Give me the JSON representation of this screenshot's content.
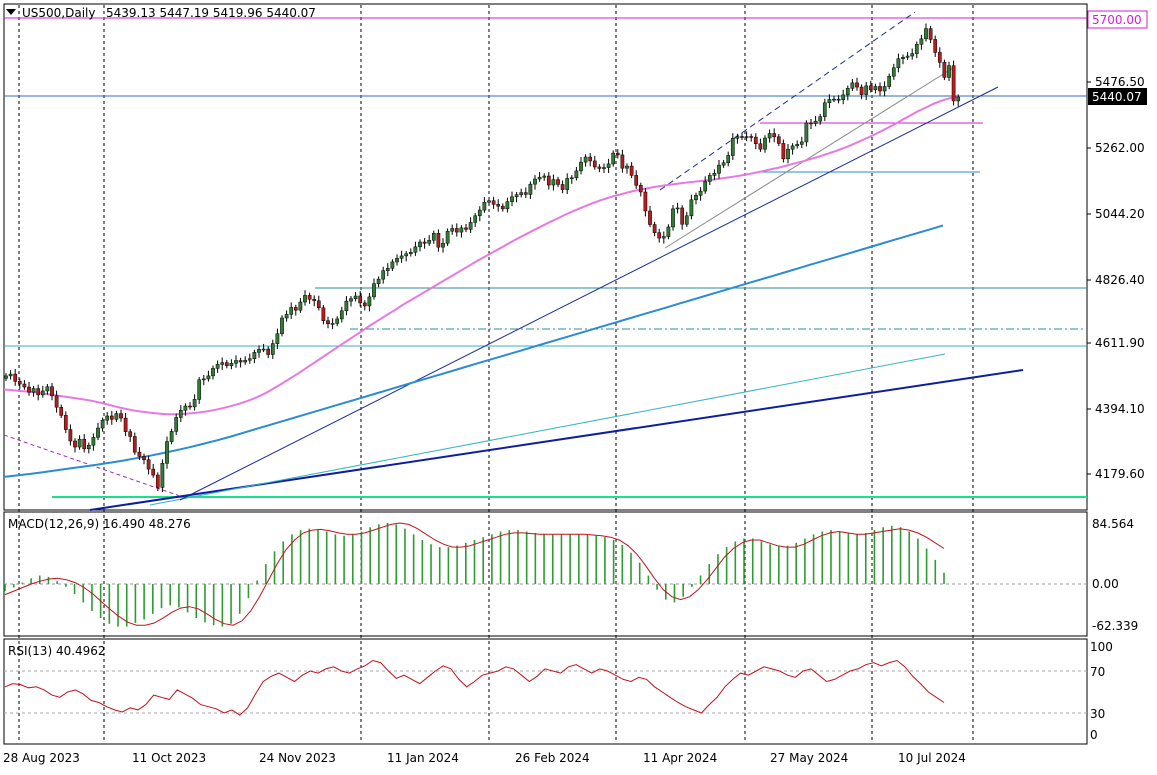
{
  "header": {
    "symbol_timeframe": "US500,Daily",
    "ohlc": "5439.13 5447.19 5419.96 5440.07"
  },
  "price_labels": {
    "level": "5700.00",
    "current": "5440.07"
  },
  "colors": {
    "background": "#ffffff",
    "bull_candle": "#2e7d32",
    "bear_candle": "#b71c1c",
    "ma_fast": "#e879e0",
    "ma_slow": "#2a8bd6",
    "macd_hist": "#2e9b33",
    "macd_signal": "#c0141c",
    "rsi_line": "#c0141c",
    "level_line": "#d41fd2",
    "trend_line_dark": "#0b1fa0",
    "horizontal_teal": "#2b8b9b",
    "support_green": "#19e08a"
  },
  "chart_data": [
    {
      "type": "candlestick",
      "title": "US500,Daily",
      "x_tick_labels": [
        "28 Aug 2023",
        "11 Oct 2023",
        "24 Nov 2023",
        "11 Jan 2024",
        "26 Feb 2024",
        "11 Apr 2024",
        "27 May 2024",
        "10 Jul 2024"
      ],
      "y_tick_labels": [
        "5476.50",
        "5262.00",
        "5044.20",
        "4826.40",
        "4611.90",
        "4394.10",
        "4179.60"
      ],
      "ylim": [
        4110,
        5760
      ],
      "grid": "vertical dashed",
      "last_price": 5440.07,
      "level_line_price": 5700.0,
      "close_series": [
        4515,
        4521,
        4497,
        4488,
        4478,
        4461,
        4473,
        4452,
        4465,
        4479,
        4449,
        4411,
        4384,
        4337,
        4299,
        4279,
        4305,
        4273,
        4285,
        4311,
        4342,
        4368,
        4382,
        4371,
        4390,
        4375,
        4330,
        4314,
        4262,
        4248,
        4237,
        4206,
        4186,
        4145,
        4225,
        4297,
        4331,
        4377,
        4401,
        4415,
        4412,
        4437,
        4502,
        4505,
        4515,
        4540,
        4553,
        4559,
        4549,
        4557,
        4566,
        4561,
        4567,
        4572,
        4593,
        4603,
        4604,
        4586,
        4622,
        4655,
        4707,
        4719,
        4742,
        4733,
        4760,
        4782,
        4769,
        4764,
        4741,
        4698,
        4688,
        4689,
        4704,
        4731,
        4763,
        4771,
        4780,
        4757,
        4747,
        4777,
        4821,
        4836,
        4864,
        4872,
        4893,
        4905,
        4913,
        4920,
        4925,
        4943,
        4959,
        4955,
        4965,
        4988,
        4942,
        4955,
        4995,
        5004,
        4992,
        5006,
        5001,
        5024,
        5046,
        5065,
        5091,
        5096,
        5084,
        5078,
        5069,
        5093,
        5109,
        5116,
        5123,
        5117,
        5151,
        5168,
        5174,
        5178,
        5148,
        5166,
        5150,
        5133,
        5170,
        5172,
        5195,
        5224,
        5241,
        5228,
        5208,
        5203,
        5206,
        5218,
        5254,
        5248,
        5204,
        5211,
        5180,
        5147,
        5125,
        5062,
        5017,
        4990,
        4972,
        4977,
        5009,
        5069,
        5072,
        5018,
        5046,
        5099,
        5114,
        5128,
        5160,
        5180,
        5187,
        5214,
        5222,
        5246,
        5303,
        5309,
        5306,
        5309,
        5307,
        5285,
        5267,
        5304,
        5319,
        5308,
        5286,
        5235,
        5267,
        5278,
        5283,
        5291,
        5354,
        5352,
        5360,
        5375,
        5421,
        5432,
        5433,
        5431,
        5447,
        5469,
        5487,
        5473,
        5448,
        5477,
        5464,
        5475,
        5460,
        5475,
        5509,
        5537,
        5567,
        5572,
        5576,
        5584,
        5615,
        5633,
        5667,
        5631,
        5588,
        5555,
        5505,
        5544,
        5427,
        5440
      ],
      "series": [
        {
          "name": "",
          "kind": "moving_average_fast",
          "values": [
            4470,
            4468,
            4465,
            4463,
            4460,
            4456,
            4452,
            4448,
            4444,
            4440,
            4436,
            4431,
            4425,
            4418,
            4411,
            4405,
            4400,
            4396,
            4393,
            4390,
            4388,
            4388,
            4389,
            4391,
            4394,
            4398,
            4403,
            4409,
            4416,
            4424,
            4433,
            4444,
            4457,
            4472,
            4488,
            4505,
            4522,
            4540,
            4558,
            4576,
            4594,
            4612,
            4630,
            4648,
            4666,
            4684,
            4701,
            4718,
            4735,
            4752,
            4768,
            4784,
            4800,
            4816,
            4832,
            4848,
            4864,
            4880,
            4896,
            4911,
            4926,
            4941,
            4956,
            4971,
            4985,
            4999,
            5013,
            5026,
            5039,
            5052,
            5064,
            5075,
            5086,
            5096,
            5105,
            5113,
            5120,
            5127,
            5133,
            5138,
            5143,
            5147,
            5150,
            5154,
            5157,
            5160,
            5163,
            5166,
            5170,
            5174,
            5178,
            5183,
            5188,
            5194,
            5200,
            5206,
            5213,
            5220,
            5227,
            5235,
            5243,
            5252,
            5261,
            5271,
            5282,
            5294,
            5306,
            5319,
            5333,
            5347,
            5362,
            5377,
            5392,
            5405,
            5418,
            5428,
            5436,
            5440
          ]
        },
        {
          "name": "",
          "kind": "moving_average_slow",
          "values": [
            4180,
            4185,
            4190,
            4196,
            4202,
            4208,
            4214,
            4220,
            4227,
            4234,
            4242,
            4250,
            4259,
            4268,
            4278,
            4289,
            4300,
            4312,
            4325,
            4338,
            4351,
            4364,
            4377,
            4390,
            4403,
            4416,
            4429,
            4442,
            4455,
            4468,
            4481,
            4494,
            4507,
            4520,
            4533,
            4546,
            4559,
            4572,
            4585,
            4598,
            4611,
            4624,
            4637,
            4650,
            4663,
            4676,
            4689,
            4702,
            4715,
            4728,
            4741,
            4754,
            4767,
            4780,
            4793,
            4806,
            4819,
            4832,
            4845,
            4858,
            4871,
            4884,
            4897,
            4910,
            4923,
            4936,
            4949,
            4962,
            4975,
            4988,
            5001,
            5014
          ]
        }
      ]
    },
    {
      "type": "macd",
      "label": "MACD(12,26,9) 16.490 48.276",
      "y_tick_labels": [
        "84.564",
        "0.00",
        "-62.339"
      ],
      "ylim": [
        -70,
        98
      ],
      "histogram": [
        -10,
        -5,
        2,
        8,
        12,
        10,
        4,
        -4,
        -14,
        -26,
        -38,
        -48,
        -56,
        -60,
        -60,
        -55,
        -50,
        -42,
        -34,
        -30,
        -33,
        -40,
        -48,
        -54,
        -58,
        -60,
        -56,
        -42,
        -20,
        5,
        28,
        46,
        60,
        70,
        76,
        78,
        77,
        74,
        70,
        68,
        70,
        74,
        80,
        84,
        86,
        84,
        78,
        70,
        62,
        56,
        52,
        52,
        54,
        58,
        62,
        66,
        70,
        74,
        76,
        76,
        74,
        72,
        70,
        70,
        70,
        70,
        70,
        69,
        68,
        66,
        62,
        55,
        44,
        30,
        12,
        -8,
        -22,
        -26,
        -18,
        -4,
        12,
        28,
        42,
        52,
        60,
        64,
        64,
        60,
        56,
        54,
        54,
        58,
        64,
        70,
        74,
        76,
        74,
        72,
        70,
        72,
        76,
        80,
        82,
        80,
        74,
        64,
        50,
        34,
        16
      ],
      "signal": [
        -15,
        -10,
        -5,
        0,
        4,
        7,
        8,
        6,
        2,
        -5,
        -14,
        -25,
        -36,
        -46,
        -54,
        -58,
        -58,
        -55,
        -48,
        -40,
        -34,
        -32,
        -35,
        -42,
        -50,
        -56,
        -58,
        -52,
        -38,
        -18,
        5,
        28,
        48,
        62,
        72,
        76,
        77,
        75,
        72,
        70,
        70,
        72,
        76,
        80,
        84,
        86,
        84,
        78,
        70,
        62,
        56,
        52,
        52,
        54,
        58,
        62,
        66,
        70,
        72,
        72,
        71,
        70,
        70,
        70,
        70,
        70,
        70,
        69,
        68,
        66,
        62,
        54,
        42,
        26,
        8,
        -8,
        -18,
        -22,
        -18,
        -8,
        6,
        22,
        38,
        50,
        58,
        62,
        62,
        58,
        54,
        52,
        52,
        56,
        62,
        68,
        72,
        74,
        72,
        70,
        70,
        72,
        74,
        76,
        78,
        76,
        72,
        66,
        58,
        50
      ]
    },
    {
      "type": "rsi",
      "label": "RSI(13) 40.4962",
      "y_tick_labels": [
        "100",
        "70",
        "30",
        "0"
      ],
      "ylim": [
        0,
        100
      ],
      "reference_levels": [
        70,
        30
      ],
      "values": [
        55,
        58,
        57,
        54,
        55,
        52,
        47,
        45,
        50,
        52,
        48,
        42,
        40,
        36,
        33,
        31,
        35,
        33,
        38,
        47,
        45,
        43,
        52,
        48,
        44,
        38,
        36,
        34,
        30,
        33,
        28,
        35,
        48,
        60,
        65,
        68,
        64,
        60,
        66,
        70,
        68,
        72,
        74,
        70,
        68,
        72,
        75,
        80,
        78,
        70,
        63,
        66,
        62,
        58,
        64,
        70,
        75,
        72,
        62,
        55,
        60,
        66,
        68,
        70,
        74,
        72,
        66,
        60,
        65,
        72,
        70,
        68,
        74,
        76,
        72,
        68,
        72,
        70,
        66,
        62,
        60,
        64,
        62,
        55,
        50,
        45,
        40,
        36,
        33,
        30,
        38,
        45,
        55,
        62,
        68,
        66,
        70,
        74,
        72,
        70,
        66,
        64,
        70,
        72,
        66,
        60,
        62,
        66,
        70,
        72,
        76,
        78,
        75,
        78,
        80,
        74,
        65,
        58,
        50,
        45,
        40
      ]
    }
  ]
}
